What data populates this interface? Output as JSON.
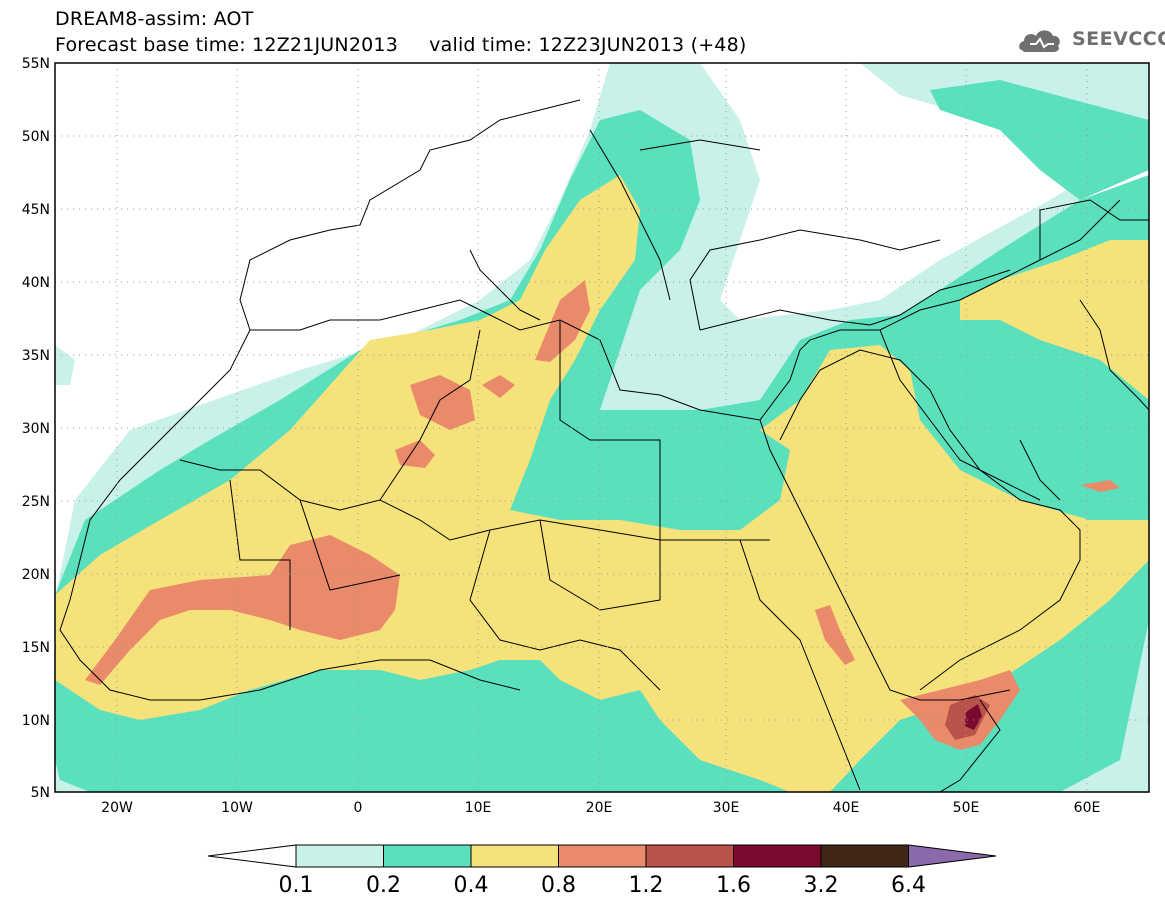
{
  "header": {
    "line1": "DREAM8-assim: AOT",
    "line2": "Forecast base time: 12Z21JUN2013     valid time: 12Z23JUN2013 (+48)"
  },
  "logo": {
    "text": "SEEVCCC",
    "icon": "cloud-icon"
  },
  "map": {
    "lat_labels": [
      "55N",
      "50N",
      "45N",
      "40N",
      "35N",
      "30N",
      "25N",
      "20N",
      "15N",
      "10N",
      "5N"
    ],
    "lon_labels": [
      "20W",
      "10W",
      "0",
      "10E",
      "20E",
      "30E",
      "40E",
      "50E",
      "60E"
    ]
  },
  "colorbar": {
    "labels": [
      "0.1",
      "0.2",
      "0.4",
      "0.8",
      "1.2",
      "1.6",
      "3.2",
      "6.4"
    ],
    "colors": [
      "#ffffff",
      "#c8f1ea",
      "#5ae0bd",
      "#f6e27a",
      "#e98a6a",
      "#b9534a",
      "#7a0b2e",
      "#3f2616",
      "#8a6aab"
    ]
  }
}
